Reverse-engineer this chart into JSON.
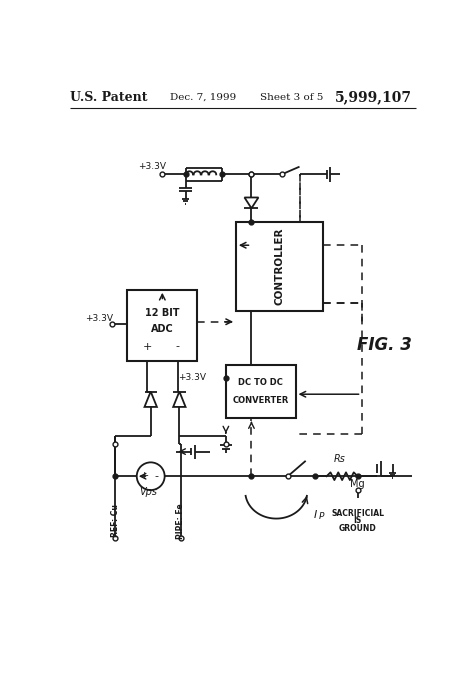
{
  "title_left": "U.S. Patent",
  "title_date": "Dec. 7, 1999",
  "title_sheet": "Sheet 3 of 5",
  "title_patent": "5,999,107",
  "fig_label": "FIG. 3",
  "bg_color": "#ffffff",
  "line_color": "#1a1a1a"
}
